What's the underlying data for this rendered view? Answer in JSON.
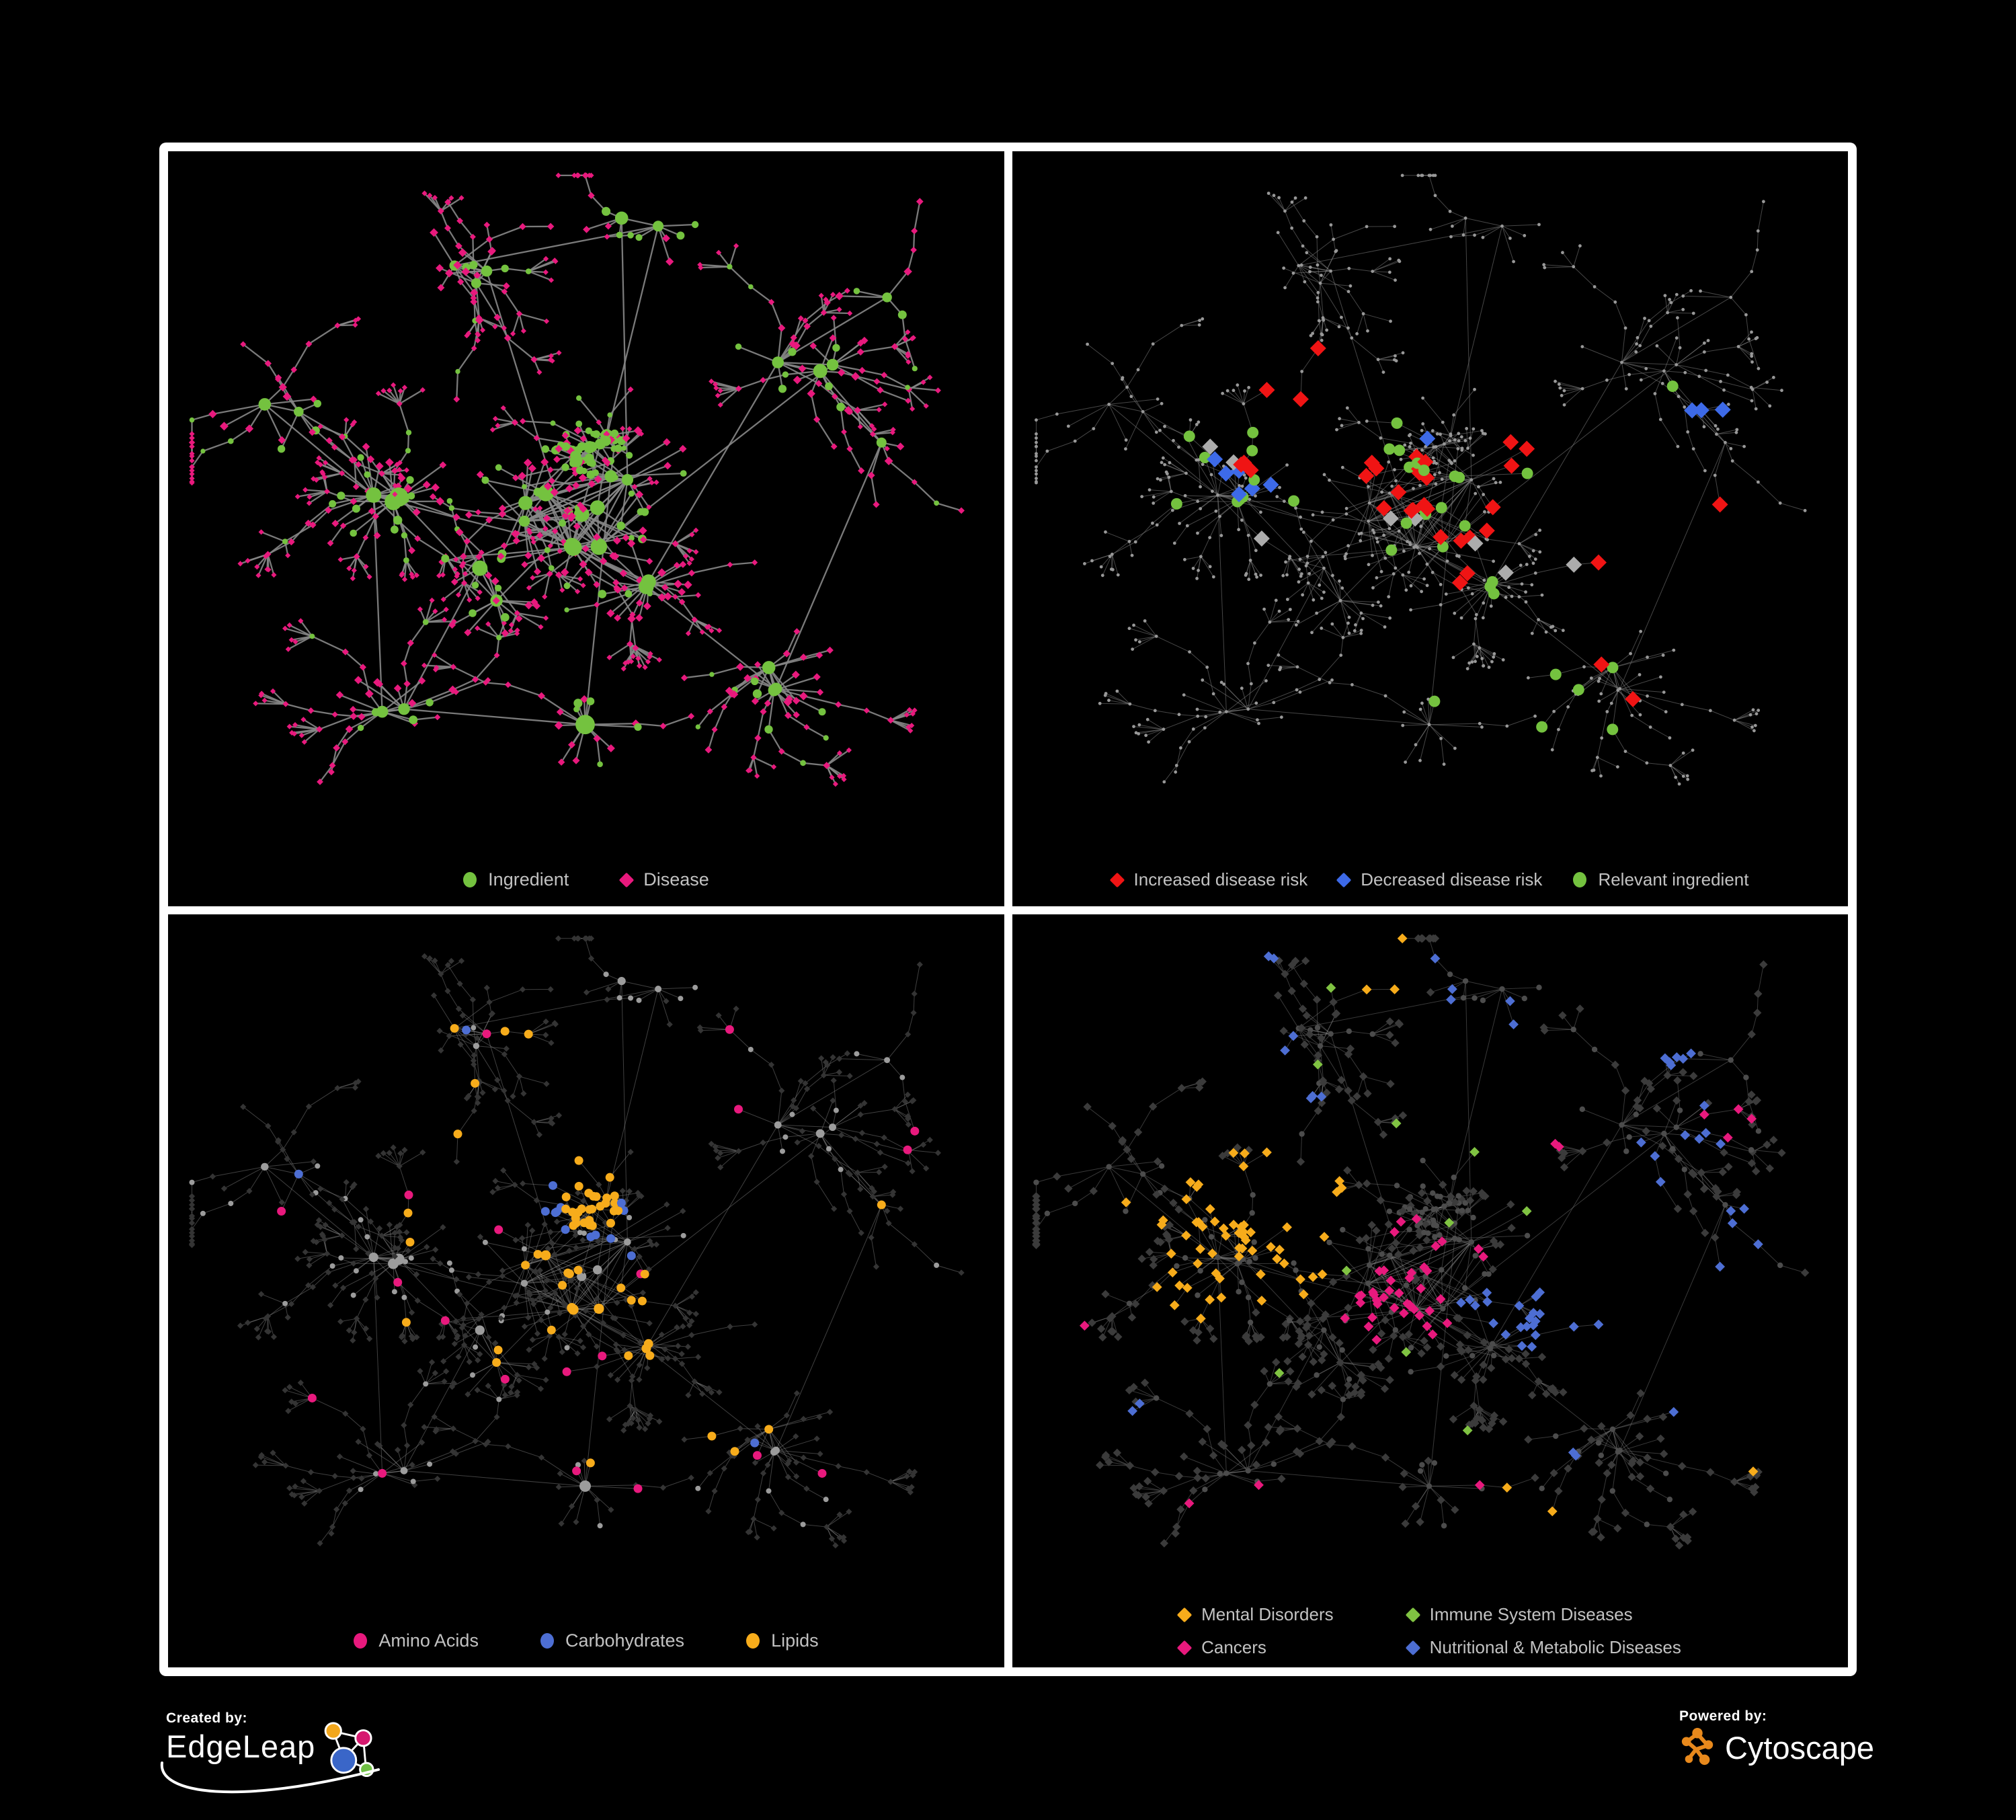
{
  "panels": [
    {
      "legend": [
        {
          "label": "Ingredient",
          "shape": "circle",
          "color": "#74C23F"
        },
        {
          "label": "Disease",
          "shape": "diamond",
          "color": "#E8197D"
        }
      ]
    },
    {
      "legend": [
        {
          "label": "Increased disease risk",
          "shape": "diamond",
          "color": "#F01414"
        },
        {
          "label": "Decreased disease risk",
          "shape": "diamond",
          "color": "#3D6AE8"
        },
        {
          "label": "Relevant ingredient",
          "shape": "circle",
          "color": "#74C23F"
        }
      ]
    },
    {
      "legend": [
        {
          "label": "Amino Acids",
          "shape": "circle",
          "color": "#E8197D"
        },
        {
          "label": "Carbohydrates",
          "shape": "circle",
          "color": "#4D6ED3"
        },
        {
          "label": "Lipids",
          "shape": "circle",
          "color": "#F7AC1B"
        }
      ]
    },
    {
      "legend": [
        {
          "label": "Mental Disorders",
          "shape": "diamond",
          "color": "#F7AC1B"
        },
        {
          "label": "Immune System Diseases",
          "shape": "diamond",
          "color": "#80C342"
        },
        {
          "label": "Cancers",
          "shape": "diamond",
          "color": "#E8197D"
        },
        {
          "label": "Nutritional & Metabolic Diseases",
          "shape": "diamond",
          "color": "#4D6ED3"
        }
      ]
    }
  ],
  "footer": {
    "created_by_label": "Created by:",
    "created_by_brand": "EdgeLeap",
    "powered_by_label": "Powered by:",
    "powered_by_brand": "Cytoscape"
  },
  "chart_data": {
    "type": "network",
    "figure": "2x2 grid of the same ingredient-disease association network shown with four colorings: node types, disease-risk highlights, ingredient categories, disease categories",
    "network": {
      "seed": 1337,
      "clusters": [
        {
          "x": 0.5,
          "y": 0.53,
          "h": 10,
          "l": 8,
          "d": 0.075,
          "c": 0.22,
          "f": 0.32,
          "hs": 0.16,
          "hub": 8,
          "hubv": 5
        },
        {
          "x": 0.505,
          "y": 0.415,
          "h": 7,
          "l": 6,
          "d": 0.034,
          "c": 0.05,
          "f": 0.75,
          "hs": 0.05,
          "hub": 7,
          "hubv": 3
        },
        {
          "x": 0.26,
          "y": 0.5,
          "h": 3,
          "l": 13,
          "d": 0.062,
          "c": 0.25,
          "f": 0.28,
          "hs": 0.055,
          "hub": 11,
          "hubv": 6
        },
        {
          "x": 0.5,
          "y": 0.84,
          "h": 1,
          "l": 19,
          "d": 0.06,
          "c": 0.12,
          "f": 0.08,
          "hs": 0.02,
          "hub": 13,
          "hubv": 3
        },
        {
          "x": 0.57,
          "y": 0.62,
          "h": 2,
          "l": 14,
          "d": 0.055,
          "c": 0.15,
          "f": 0.12,
          "hs": 0.04,
          "hub": 10,
          "hubv": 4
        },
        {
          "x": 0.78,
          "y": 0.3,
          "h": 3,
          "l": 7,
          "d": 0.055,
          "c": 0.5,
          "f": 0.18,
          "hs": 0.1,
          "hub": 8,
          "hubv": 3
        },
        {
          "x": 0.38,
          "y": 0.15,
          "h": 3,
          "l": 6,
          "d": 0.05,
          "c": 0.45,
          "f": 0.3,
          "hs": 0.1,
          "hub": 7,
          "hubv": 3
        },
        {
          "x": 0.56,
          "y": 0.1,
          "h": 2,
          "l": 5,
          "d": 0.045,
          "c": 0.45,
          "f": 0.3,
          "hs": 0.07,
          "hub": 7,
          "hubv": 3
        },
        {
          "x": 0.72,
          "y": 0.75,
          "h": 3,
          "l": 8,
          "d": 0.055,
          "c": 0.35,
          "f": 0.2,
          "hs": 0.09,
          "hub": 8,
          "hubv": 4
        },
        {
          "x": 0.24,
          "y": 0.8,
          "h": 2,
          "l": 7,
          "d": 0.055,
          "c": 0.4,
          "f": 0.18,
          "hs": 0.08,
          "hub": 8,
          "hubv": 3
        },
        {
          "x": 0.13,
          "y": 0.38,
          "h": 2,
          "l": 6,
          "d": 0.055,
          "c": 0.4,
          "f": 0.22,
          "hs": 0.07,
          "hub": 7,
          "hubv": 3
        },
        {
          "x": 0.88,
          "y": 0.42,
          "h": 1,
          "l": 5,
          "d": 0.05,
          "c": 0.35,
          "f": 0.15,
          "hs": 0.03,
          "hub": 7,
          "hubv": 3
        },
        {
          "x": 0.37,
          "y": 0.62,
          "h": 2,
          "l": 8,
          "d": 0.055,
          "c": 0.2,
          "f": 0.25,
          "hs": 0.06,
          "hub": 9,
          "hubv": 4
        },
        {
          "x": 0.88,
          "y": 0.2,
          "h": 1,
          "l": 5,
          "d": 0.045,
          "c": 0.4,
          "f": 0.2,
          "hs": 0.03,
          "hub": 7,
          "hubv": 3
        }
      ],
      "links": [
        [
          0,
          1
        ],
        [
          0,
          2
        ],
        [
          0,
          4
        ],
        [
          0,
          12
        ],
        [
          2,
          12
        ],
        [
          0,
          6
        ],
        [
          1,
          7
        ],
        [
          0,
          3
        ],
        [
          4,
          8
        ],
        [
          0,
          5
        ],
        [
          5,
          13
        ],
        [
          2,
          10
        ],
        [
          9,
          12
        ],
        [
          3,
          9
        ],
        [
          8,
          11
        ],
        [
          5,
          11
        ],
        [
          0,
          7
        ],
        [
          2,
          9
        ],
        [
          4,
          5
        ],
        [
          6,
          7
        ]
      ],
      "core_extra": 14,
      "highlights": {
        "p2": {
          "red": [
            [
              0.5,
              0.44,
              5
            ],
            [
              0.53,
              0.52,
              5
            ],
            [
              0.46,
              0.5,
              4
            ],
            [
              0.42,
              0.44,
              3
            ],
            [
              0.28,
              0.44,
              3
            ],
            [
              0.33,
              0.35,
              2
            ],
            [
              0.6,
              0.44,
              2
            ],
            [
              0.57,
              0.52,
              2
            ],
            [
              0.55,
              0.6,
              2
            ],
            [
              0.62,
              0.4,
              1
            ],
            [
              0.71,
              0.72,
              1
            ],
            [
              0.75,
              0.78,
              1
            ],
            [
              0.71,
              0.57,
              1
            ],
            [
              0.33,
              0.28,
              1
            ],
            [
              0.85,
              0.6,
              1
            ]
          ],
          "blue": [
            [
              0.25,
              0.46,
              2
            ],
            [
              0.27,
              0.5,
              2
            ],
            [
              0.23,
              0.43,
              1
            ],
            [
              0.29,
              0.47,
              1
            ],
            [
              0.84,
              0.34,
              2
            ],
            [
              0.86,
              0.35,
              1
            ],
            [
              0.51,
              0.4,
              1
            ]
          ],
          "gray": [
            [
              0.22,
              0.4,
              1
            ],
            [
              0.28,
              0.42,
              1
            ],
            [
              0.27,
              0.55,
              1
            ],
            [
              0.45,
              0.52,
              1
            ],
            [
              0.48,
              0.53,
              1
            ],
            [
              0.54,
              0.54,
              1
            ],
            [
              0.6,
              0.6,
              1
            ],
            [
              0.73,
              0.6,
              1
            ]
          ],
          "green": [
            [
              0.25,
              0.35,
              2
            ],
            [
              0.3,
              0.4,
              3
            ],
            [
              0.26,
              0.48,
              3
            ],
            [
              0.33,
              0.46,
              1
            ],
            [
              0.43,
              0.42,
              2
            ],
            [
              0.47,
              0.46,
              3
            ],
            [
              0.5,
              0.5,
              3
            ],
            [
              0.53,
              0.46,
              2
            ],
            [
              0.45,
              0.55,
              2
            ],
            [
              0.52,
              0.56,
              2
            ],
            [
              0.57,
              0.61,
              3
            ],
            [
              0.4,
              0.35,
              1
            ],
            [
              0.62,
              0.5,
              1
            ],
            [
              0.13,
              0.48,
              1
            ],
            [
              0.79,
              0.33,
              1
            ],
            [
              0.68,
              0.71,
              2
            ],
            [
              0.52,
              0.78,
              1
            ],
            [
              0.65,
              0.8,
              1
            ],
            [
              0.7,
              0.85,
              1
            ],
            [
              0.67,
              0.76,
              1
            ]
          ]
        },
        "p3": {
          "lipid": [
            [
              0.505,
              0.415,
              26
            ],
            [
              0.46,
              0.5,
              7
            ],
            [
              0.52,
              0.55,
              5
            ],
            [
              0.42,
              0.62,
              3
            ],
            [
              0.57,
              0.62,
              4
            ],
            [
              0.3,
              0.45,
              2
            ],
            [
              0.62,
              0.55,
              2
            ],
            [
              0.35,
              0.3,
              2
            ],
            [
              0.64,
              0.72,
              2
            ],
            [
              0.28,
              0.6,
              1
            ],
            [
              0.57,
              0.75,
              1
            ],
            [
              0.7,
              0.6,
              1
            ],
            [
              0.45,
              0.1,
              1
            ],
            [
              0.5,
              0.22,
              2
            ],
            [
              0.55,
              0.28,
              2
            ],
            [
              0.86,
              0.45,
              1
            ],
            [
              0.31,
              0.08,
              1
            ]
          ],
          "carb": [
            [
              0.495,
              0.385,
              5
            ],
            [
              0.52,
              0.44,
              3
            ],
            [
              0.46,
              0.42,
              2
            ],
            [
              0.13,
              0.33,
              1
            ],
            [
              0.52,
              0.3,
              1
            ],
            [
              0.77,
              0.62,
              1
            ],
            [
              0.56,
              0.48,
              1
            ],
            [
              0.3,
              0.06,
              1
            ]
          ],
          "amino": [
            [
              0.12,
              0.4,
              1
            ],
            [
              0.28,
              0.36,
              1
            ],
            [
              0.2,
              0.64,
              1
            ],
            [
              0.25,
              0.52,
              1
            ],
            [
              0.33,
              0.57,
              1
            ],
            [
              0.45,
              0.8,
              1
            ],
            [
              0.52,
              0.63,
              1
            ],
            [
              0.55,
              0.58,
              1
            ],
            [
              0.66,
              0.3,
              1
            ],
            [
              0.88,
              0.37,
              1
            ],
            [
              0.45,
              0.12,
              1
            ],
            [
              0.25,
              0.79,
              1
            ],
            [
              0.58,
              0.86,
              1
            ],
            [
              0.7,
              0.13,
              1
            ],
            [
              0.5,
              0.7,
              1
            ],
            [
              0.4,
              0.68,
              1
            ],
            [
              0.82,
              0.75,
              1
            ],
            [
              0.35,
              0.42,
              1
            ],
            [
              0.95,
              0.27,
              1
            ],
            [
              0.67,
              0.74,
              1
            ]
          ]
        },
        "p4": {
          "mental": [
            [
              0.24,
              0.47,
              28
            ],
            [
              0.28,
              0.42,
              12
            ],
            [
              0.2,
              0.54,
              8
            ],
            [
              0.32,
              0.5,
              6
            ],
            [
              0.13,
              0.44,
              3
            ],
            [
              0.6,
              0.87,
              2
            ],
            [
              0.44,
              0.06,
              3
            ],
            [
              0.9,
              0.72,
              1
            ],
            [
              0.38,
              0.4,
              3
            ]
          ],
          "cancer": [
            [
              0.44,
              0.53,
              16
            ],
            [
              0.49,
              0.57,
              12
            ],
            [
              0.53,
              0.5,
              6
            ],
            [
              0.41,
              0.6,
              4
            ],
            [
              0.87,
              0.28,
              4
            ],
            [
              0.62,
              0.3,
              2
            ],
            [
              0.25,
              0.88,
              2
            ],
            [
              0.55,
              0.8,
              1
            ],
            [
              0.06,
              0.62,
              1
            ],
            [
              0.47,
              0.44,
              3
            ]
          ],
          "nutri": [
            [
              0.58,
              0.56,
              8
            ],
            [
              0.61,
              0.6,
              8
            ],
            [
              0.64,
              0.57,
              4
            ],
            [
              0.8,
              0.15,
              6
            ],
            [
              0.84,
              0.3,
              5
            ],
            [
              0.9,
              0.45,
              4
            ],
            [
              0.75,
              0.35,
              3
            ],
            [
              0.54,
              0.05,
              3
            ],
            [
              0.58,
              0.1,
              2
            ],
            [
              0.33,
              0.25,
              3
            ],
            [
              0.3,
              0.2,
              2
            ],
            [
              0.15,
              0.72,
              2
            ],
            [
              0.68,
              0.78,
              2
            ],
            [
              0.73,
              0.5,
              2
            ],
            [
              0.86,
              0.6,
              2
            ],
            [
              0.25,
              0.06,
              2
            ]
          ],
          "immune": [
            [
              0.38,
              0.2,
              1
            ],
            [
              0.47,
              0.3,
              1
            ],
            [
              0.52,
              0.44,
              1
            ],
            [
              0.36,
              0.47,
              1
            ],
            [
              0.6,
              0.33,
              1
            ],
            [
              0.46,
              0.63,
              1
            ],
            [
              0.7,
              0.47,
              1
            ],
            [
              0.3,
              0.68,
              1
            ],
            [
              0.55,
              0.75,
              1
            ],
            [
              0.42,
              0.08,
              1
            ]
          ]
        }
      },
      "styles": {
        "p1": {
          "edge": "#878787",
          "edge_w": 2.3,
          "edge_op": 0.9,
          "ingredient": "#74C23F",
          "disease": "#E8197D"
        },
        "p2": {
          "edge": "#808080",
          "edge_w": 1.0,
          "edge_op": 0.55,
          "dot": "#989898",
          "dot_r": 2.4,
          "red": "#F01414",
          "blue": "#3D6AE8",
          "gray": "#ACACAC",
          "green": "#74C23F",
          "diamond_s": 12,
          "circle_r": 8.5
        },
        "p3": {
          "edge": "#8F8F8F",
          "edge_w": 1.0,
          "edge_op": 0.45,
          "diamond": "#343434",
          "diamond_s": 4.6,
          "circle": "#9C9C9C",
          "amino": "#E8197D",
          "carb": "#4D6ED3",
          "lipid": "#F7AC1B"
        },
        "p4": {
          "edge": "#8F8F8F",
          "edge_w": 1.0,
          "edge_op": 0.4,
          "circle": "#4C4C4C",
          "circle_r": 4.2,
          "diamond": "#3B3B3B",
          "diamond_s": 6.2,
          "hl_s": 7.4,
          "mental": "#F7AC1B",
          "immune": "#80C342",
          "cancer": "#E8197D",
          "nutri": "#4D6ED3"
        }
      }
    }
  }
}
